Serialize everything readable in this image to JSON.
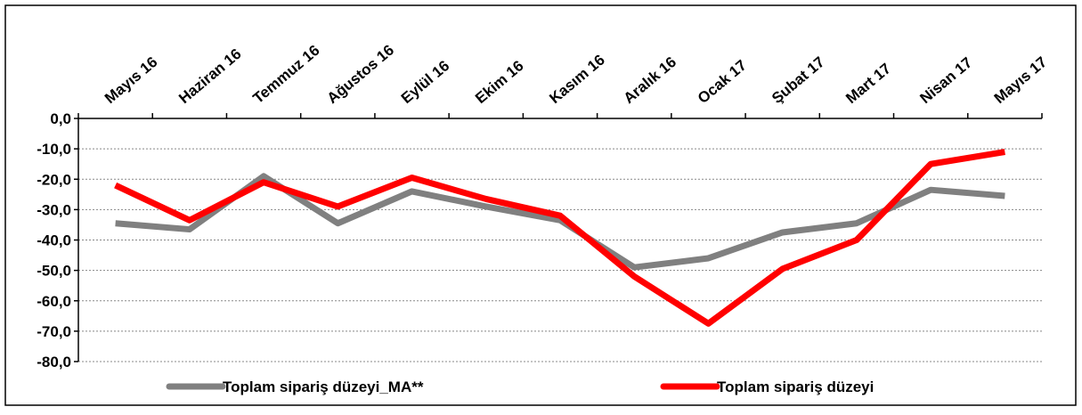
{
  "chart_data": {
    "type": "line",
    "categories": [
      "Mayıs 16",
      "Haziran 16",
      "Temmuz 16",
      "Ağustos 16",
      "Eylül 16",
      "Ekim 16",
      "Kasım 16",
      "Aralık 16",
      "Ocak 17",
      "Şubat 17",
      "Mart 17",
      "Nisan 17",
      "Mayıs 17"
    ],
    "series": [
      {
        "name": "Toplam sipariş düzeyi_MA**",
        "color": "#808080",
        "values": [
          -34.5,
          -36.5,
          -19,
          -34.5,
          -24,
          -29,
          -33.5,
          -49,
          -46,
          -37.5,
          -34.5,
          -23.5,
          -25.5
        ]
      },
      {
        "name": "Toplam sipariş düzeyi",
        "color": "#ff0000",
        "values": [
          -22,
          -33.5,
          -21,
          -29,
          -19.5,
          -26.5,
          -32,
          -52,
          -67.5,
          -49.5,
          -40,
          -15,
          -11
        ]
      }
    ],
    "ylim": [
      -80,
      0
    ],
    "yticks": [
      {
        "value": 0,
        "label": "0,0"
      },
      {
        "value": -10,
        "label": "-10,0"
      },
      {
        "value": -20,
        "label": "-20,0"
      },
      {
        "value": -30,
        "label": "-30,0"
      },
      {
        "value": -40,
        "label": "-40,0"
      },
      {
        "value": -50,
        "label": "-50,0"
      },
      {
        "value": -60,
        "label": "-60,0"
      },
      {
        "value": -70,
        "label": "-70,0"
      },
      {
        "value": -80,
        "label": "-80,0"
      }
    ],
    "grid": true
  }
}
